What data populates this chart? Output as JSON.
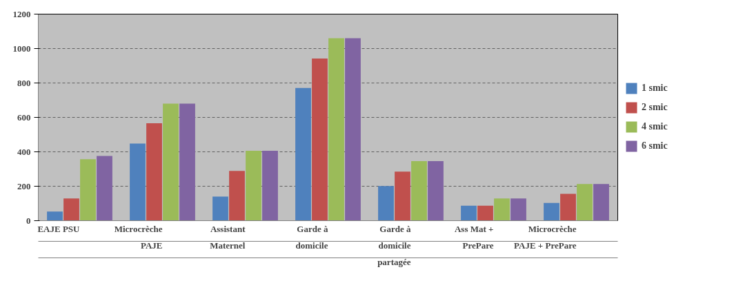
{
  "chart_data": {
    "type": "bar",
    "categories": [
      "EAJE PSU",
      "Microcrèche\nPAJE",
      "Assistant\nMaternel",
      "Garde à\ndomicile",
      "Garde à\ndomicile\npartagée",
      "Ass Mat +\nPrePare",
      "Microcrèche\nPAJE + PrePare"
    ],
    "series": [
      {
        "name": "1 smic",
        "color": "#4f81bd",
        "values": [
          53,
          448,
          140,
          771,
          201,
          87,
          103
        ]
      },
      {
        "name": "2 smic",
        "color": "#c0504d",
        "values": [
          129,
          566,
          289,
          942,
          285,
          87,
          156
        ]
      },
      {
        "name": "4 smic",
        "color": "#9bbb59",
        "values": [
          357,
          680,
          406,
          1060,
          346,
          129,
          213
        ]
      },
      {
        "name": "6 smic",
        "color": "#8064a2",
        "values": [
          376,
          680,
          406,
          1060,
          346,
          129,
          213
        ]
      }
    ],
    "ylim": [
      0,
      1200
    ],
    "yticks": [
      0,
      200,
      400,
      600,
      800,
      1000,
      1200
    ],
    "grid": "y",
    "legend": "right"
  }
}
